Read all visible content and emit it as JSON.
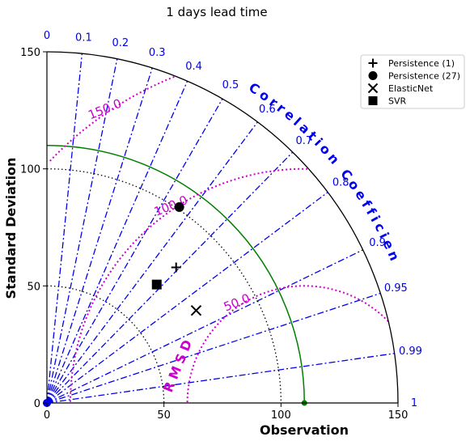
{
  "colors": {
    "corr": "#0000ee",
    "rmsd": "#cc00cc",
    "reference": "#008000",
    "std_grid": "#000000"
  },
  "chart_data": {
    "type": "scatter",
    "subtype": "taylor-diagram",
    "title": "1 days lead time",
    "ylabel": "Standard Deviation",
    "xlabel": "Observation",
    "corr_axis_label": "Correlation Coefficient",
    "rmsd_axis_label": "RMSD",
    "std_range": [
      0,
      150
    ],
    "std_ticks": [
      "0",
      "50",
      "100",
      "150"
    ],
    "std_gridlines": [
      50,
      100
    ],
    "reference_std": 110,
    "correlation_ticks": [
      {
        "value": 0,
        "label": "0"
      },
      {
        "value": 0.1,
        "label": "0.1"
      },
      {
        "value": 0.2,
        "label": "0.2"
      },
      {
        "value": 0.3,
        "label": "0.3"
      },
      {
        "value": 0.4,
        "label": "0.4"
      },
      {
        "value": 0.5,
        "label": "0.5"
      },
      {
        "value": 0.6,
        "label": "0.6"
      },
      {
        "value": 0.7,
        "label": "0.7"
      },
      {
        "value": 0.8,
        "label": "0.8"
      },
      {
        "value": 0.9,
        "label": "0.9"
      },
      {
        "value": 0.95,
        "label": "0.95"
      },
      {
        "value": 0.99,
        "label": "0.99"
      },
      {
        "value": 1,
        "label": "1"
      }
    ],
    "rmsd_contours": [
      {
        "value": 50,
        "label": "50.0"
      },
      {
        "value": 100,
        "label": "100.0"
      },
      {
        "value": 150,
        "label": "150.0"
      }
    ],
    "legend": {
      "placement": "top-right"
    },
    "series": [
      {
        "name": "Persistence (1)",
        "marker": "plus",
        "std": 80,
        "corr": 0.69
      },
      {
        "name": "Persistence (27)",
        "marker": "circle",
        "std": 101,
        "corr": 0.56
      },
      {
        "name": "ElasticNet",
        "marker": "x",
        "std": 75,
        "corr": 0.85
      },
      {
        "name": "SVR",
        "marker": "square",
        "std": 69,
        "corr": 0.68
      }
    ]
  }
}
